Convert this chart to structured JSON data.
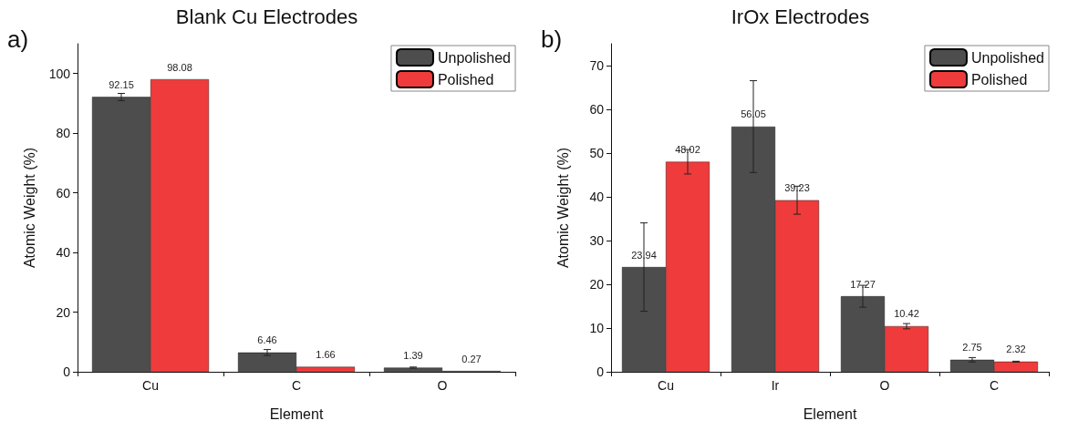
{
  "chart_data": [
    {
      "type": "bar",
      "title": "Blank Cu Electrodes",
      "xlabel": "Element",
      "ylabel": "Atomic Weight (%)",
      "annotations": [
        "a)"
      ],
      "categories": [
        "Cu",
        "C",
        "O"
      ],
      "ylim": [
        0,
        110
      ],
      "yticks": [
        0,
        20,
        40,
        60,
        80,
        100
      ],
      "grid": false,
      "legend": "top right",
      "data_labels": true,
      "series": [
        {
          "name": "Unpolished",
          "color": "#4d4d4d",
          "values": [
            92.15,
            6.46,
            1.39
          ],
          "errors": [
            1.2,
            1.0,
            0.2
          ]
        },
        {
          "name": "Polished",
          "color": "#ef3b3b",
          "values": [
            98.08,
            1.66,
            0.27
          ],
          "errors": [
            null,
            null,
            null
          ]
        }
      ]
    },
    {
      "type": "bar",
      "title": "IrOx Electrodes",
      "xlabel": "Element",
      "ylabel": "Atomic Weight (%)",
      "annotations": [
        "b)"
      ],
      "categories": [
        "Cu",
        "Ir",
        "O",
        "C"
      ],
      "ylim": [
        0,
        75
      ],
      "yticks": [
        0,
        10,
        20,
        30,
        40,
        50,
        60,
        70
      ],
      "grid": false,
      "legend": "top right",
      "data_labels": true,
      "series": [
        {
          "name": "Unpolished",
          "color": "#4d4d4d",
          "values": [
            23.94,
            56.05,
            17.27,
            2.75
          ],
          "errors": [
            10.1,
            10.5,
            2.5,
            0.5
          ]
        },
        {
          "name": "Polished",
          "color": "#ef3b3b",
          "values": [
            48.02,
            39.23,
            10.42,
            2.32
          ],
          "errors": [
            2.8,
            3.2,
            0.6,
            0.1
          ]
        }
      ]
    }
  ]
}
